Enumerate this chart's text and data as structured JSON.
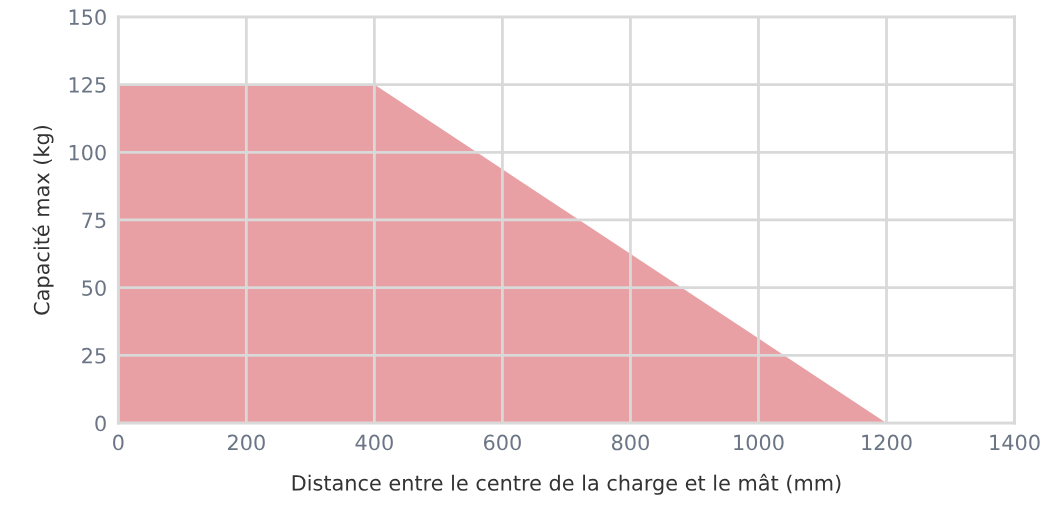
{
  "chart_data": {
    "type": "area",
    "xlabel": "Distance entre le centre de la charge et le mât (mm)",
    "ylabel": "Capacité max (kg)",
    "x": [
      0,
      400,
      1200
    ],
    "series": [
      {
        "color": "#e8a0a4",
        "values": [
          125,
          125,
          0
        ]
      }
    ],
    "xlim": [
      0,
      1400
    ],
    "xticks": [
      0,
      200,
      400,
      600,
      800,
      1000,
      1200,
      1400
    ],
    "ylim": [
      0,
      150
    ],
    "yticks": [
      0,
      25,
      50,
      75,
      100,
      125,
      150
    ],
    "grid": true,
    "legend": false
  }
}
